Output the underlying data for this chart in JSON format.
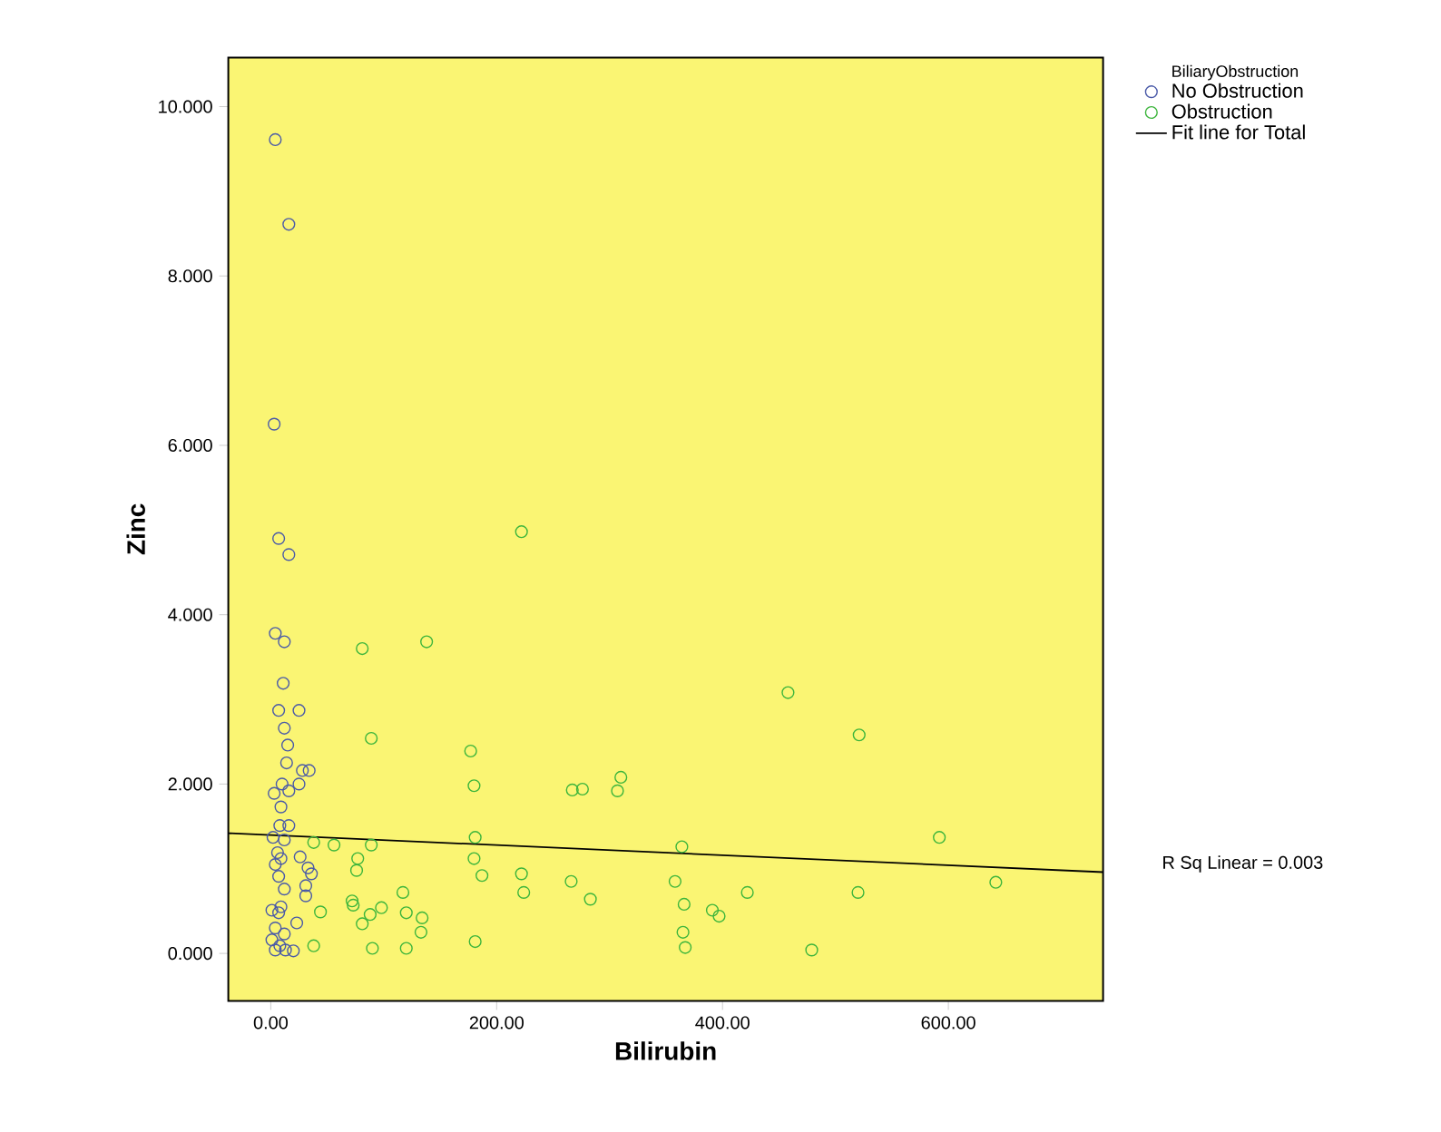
{
  "chart_data": {
    "type": "scatter",
    "xlabel": "Bilirubin",
    "ylabel": "Zinc",
    "legend_title": "BiliaryObstruction",
    "legend": "top right",
    "marker": "circle",
    "xlim": [
      -37.6,
      737
    ],
    "ylim": [
      -0.56,
      10.58
    ],
    "xticks": [
      {
        "value": 0,
        "label": "0.00"
      },
      {
        "value": 200,
        "label": "200.00"
      },
      {
        "value": 400,
        "label": "400.00"
      },
      {
        "value": 600,
        "label": "600.00"
      }
    ],
    "yticks": [
      {
        "value": 0,
        "label": "0.000"
      },
      {
        "value": 2,
        "label": "2.000"
      },
      {
        "value": 4,
        "label": "4.000"
      },
      {
        "value": 6,
        "label": "6.000"
      },
      {
        "value": 8,
        "label": "8.000"
      },
      {
        "value": 10,
        "label": "10.000"
      }
    ],
    "annotations": [
      "R Sq Linear = 0.003"
    ],
    "series": [
      {
        "name": "No Obstruction",
        "color": "#4a5aa8",
        "x": [
          4,
          16,
          3,
          7,
          16,
          4,
          12,
          11,
          7,
          25,
          12,
          15,
          14,
          28,
          34,
          10,
          25,
          3,
          16,
          9,
          8,
          16,
          2,
          12,
          6,
          9,
          26,
          33,
          36,
          7,
          31,
          12,
          31,
          1,
          7,
          23,
          4,
          12,
          1,
          8,
          13,
          20,
          4,
          9,
          4
        ],
        "values": [
          9.61,
          8.61,
          6.25,
          4.9,
          4.71,
          3.78,
          3.68,
          3.19,
          2.87,
          2.87,
          2.66,
          2.46,
          2.25,
          2.16,
          2.16,
          2.0,
          2.0,
          1.89,
          1.92,
          1.73,
          1.51,
          1.51,
          1.37,
          1.34,
          1.19,
          1.12,
          1.14,
          1.01,
          0.94,
          0.91,
          0.8,
          0.76,
          0.68,
          0.51,
          0.48,
          0.36,
          0.3,
          0.23,
          0.16,
          0.09,
          0.04,
          0.03,
          0.04,
          0.55,
          1.05
        ]
      },
      {
        "name": "Obstruction",
        "color": "#3cb53c",
        "x": [
          222,
          81,
          138,
          89,
          177,
          180,
          267,
          276,
          310,
          307,
          38,
          56,
          89,
          77,
          76,
          181,
          180,
          187,
          222,
          224,
          266,
          283,
          364,
          358,
          366,
          365,
          367,
          391,
          397,
          422,
          44,
          38,
          72,
          73,
          88,
          81,
          98,
          90,
          117,
          120,
          134,
          133,
          120,
          181,
          458,
          521,
          592,
          520,
          642,
          479
        ],
        "values": [
          4.98,
          3.6,
          3.68,
          2.54,
          2.39,
          1.98,
          1.93,
          1.94,
          2.08,
          1.92,
          1.31,
          1.28,
          1.28,
          1.12,
          0.98,
          1.37,
          1.12,
          0.92,
          0.94,
          0.72,
          0.85,
          0.64,
          1.26,
          0.85,
          0.58,
          0.25,
          0.07,
          0.51,
          0.44,
          0.72,
          0.49,
          0.09,
          0.62,
          0.57,
          0.46,
          0.35,
          0.54,
          0.06,
          0.72,
          0.48,
          0.42,
          0.25,
          0.06,
          0.14,
          3.08,
          2.58,
          1.37,
          0.72,
          0.84,
          0.04
        ]
      },
      {
        "name": "Fit line for Total",
        "type": "line",
        "color": "#000000",
        "marker": "none",
        "x": [
          -37.6,
          737
        ],
        "values": [
          1.42,
          0.96
        ]
      }
    ]
  }
}
